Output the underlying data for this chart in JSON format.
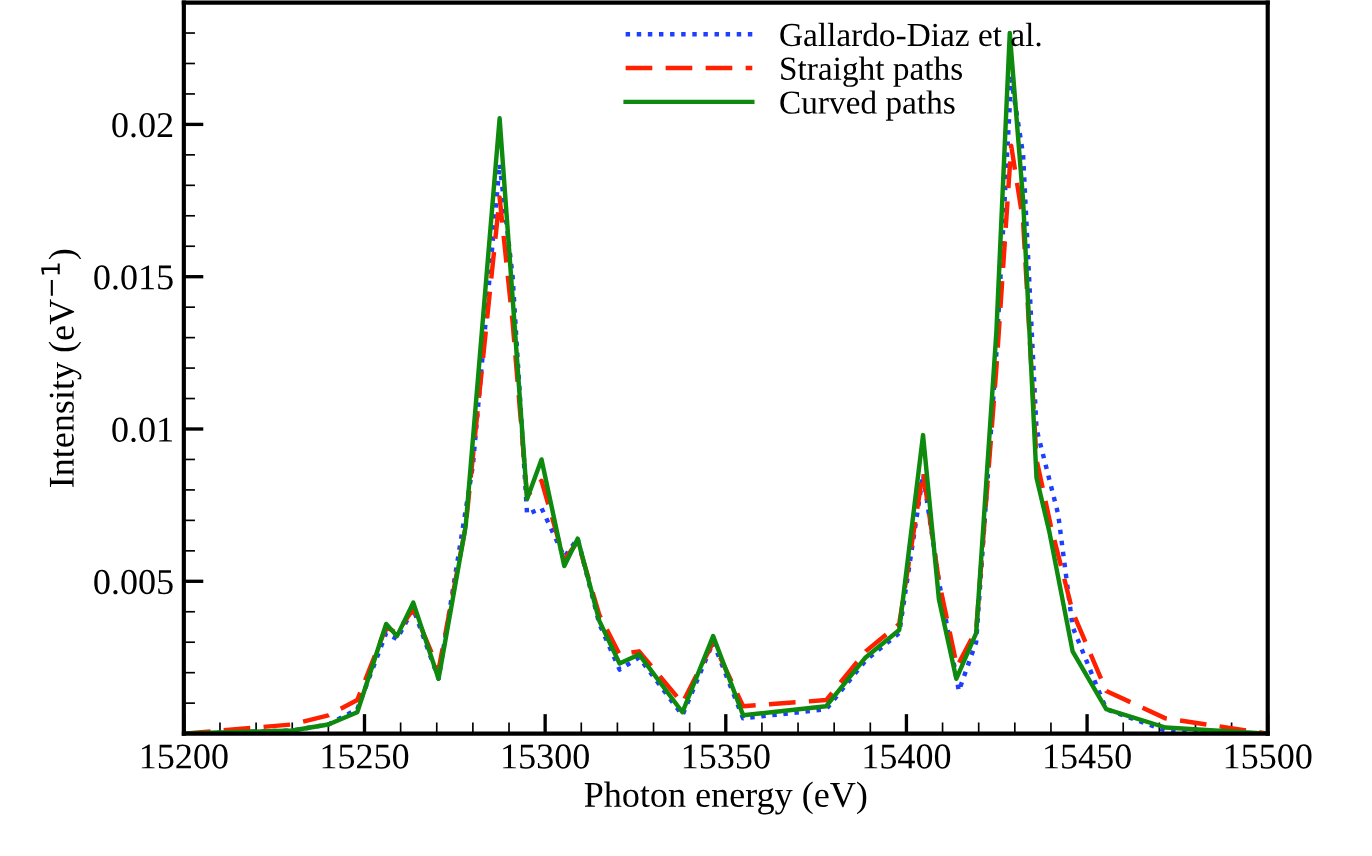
{
  "chart_data": {
    "type": "line",
    "xlabel": "Photon energy (eV)",
    "ylabel": "Intensity (eV$^{−1}$)",
    "xlim": [
      15200,
      15500
    ],
    "ylim": [
      0,
      0.024
    ],
    "xticks": [
      15200,
      15250,
      15300,
      15350,
      15400,
      15450,
      15500
    ],
    "yticks": [
      0.005,
      0.01,
      0.015,
      0.02
    ],
    "grid": false,
    "legend": "top",
    "marker": "none",
    "series": [
      {
        "name": "Gallardo-Diaz et al.",
        "color": "#1f3fff",
        "line_style": "dotted",
        "x": [
          15200,
          15230,
          15240,
          15248,
          15256,
          15259,
          15263.5,
          15270.5,
          15280,
          15287.4,
          15291,
          15295,
          15299,
          15305.3,
          15309,
          15315,
          15320.6,
          15326,
          15338,
          15346.5,
          15354.8,
          15377.8,
          15388.7,
          15398,
          15404.6,
          15409,
          15414.5,
          15419.3,
          15424.9,
          15429,
          15432.3,
          15436,
          15442,
          15446,
          15455.3,
          15471.7,
          15500
        ],
        "values": [
          0,
          0.0001,
          0.0003,
          0.0008,
          0.0033,
          0.0031,
          0.0041,
          0.0018,
          0.0088,
          0.0187,
          0.015,
          0.0072,
          0.0074,
          0.0058,
          0.0064,
          0.0036,
          0.0021,
          0.0025,
          0.0006,
          0.003,
          0.0005,
          0.0008,
          0.0024,
          0.0033,
          0.0085,
          0.005,
          0.0014,
          0.003,
          0.0125,
          0.0215,
          0.019,
          0.01,
          0.0072,
          0.0035,
          0.0008,
          0.0001,
          0
        ]
      },
      {
        "name": "Straight paths",
        "color": "#ff2000",
        "line_style": "dashed",
        "x": [
          15200,
          15230,
          15240,
          15248,
          15256,
          15259,
          15263.5,
          15270.5,
          15278,
          15287.4,
          15291,
          15295,
          15299,
          15305.3,
          15309,
          15315,
          15320.6,
          15326,
          15338,
          15346.5,
          15354.8,
          15377.8,
          15388.7,
          15398,
          15404.6,
          15409,
          15414,
          15419.3,
          15424.9,
          15429,
          15432.3,
          15436,
          15440,
          15446,
          15455.3,
          15471.7,
          15500
        ],
        "values": [
          0,
          0.0003,
          0.0006,
          0.0011,
          0.0035,
          0.0033,
          0.0041,
          0.0021,
          0.0068,
          0.0176,
          0.0135,
          0.0078,
          0.0083,
          0.0057,
          0.0063,
          0.0039,
          0.0026,
          0.0027,
          0.001,
          0.003,
          0.0009,
          0.0011,
          0.0027,
          0.0036,
          0.0086,
          0.005,
          0.0022,
          0.0034,
          0.012,
          0.0193,
          0.0168,
          0.009,
          0.0068,
          0.004,
          0.0014,
          0.0005,
          0
        ]
      },
      {
        "name": "Curved paths",
        "color": "#0e8a0e",
        "line_style": "solid",
        "x": [
          15200,
          15230,
          15240,
          15248,
          15256,
          15259,
          15263.5,
          15270.5,
          15278,
          15287.4,
          15291,
          15295,
          15299,
          15305.3,
          15309,
          15315,
          15320.6,
          15326,
          15338,
          15346.5,
          15354.8,
          15377.8,
          15388.7,
          15398,
          15404.6,
          15409,
          15413.8,
          15419.3,
          15424.9,
          15428.6,
          15432.3,
          15436,
          15439.6,
          15446,
          15455.3,
          15471.7,
          15500
        ],
        "values": [
          0,
          0.0001,
          0.0003,
          0.0007,
          0.0036,
          0.0032,
          0.0043,
          0.0018,
          0.0068,
          0.0202,
          0.0143,
          0.0077,
          0.009,
          0.0055,
          0.0064,
          0.0037,
          0.0023,
          0.0026,
          0.0007,
          0.0032,
          0.0006,
          0.0009,
          0.0025,
          0.0034,
          0.0098,
          0.0044,
          0.0018,
          0.0033,
          0.0132,
          0.023,
          0.0175,
          0.0084,
          0.0066,
          0.0027,
          0.0008,
          0.0002,
          0
        ]
      }
    ]
  }
}
